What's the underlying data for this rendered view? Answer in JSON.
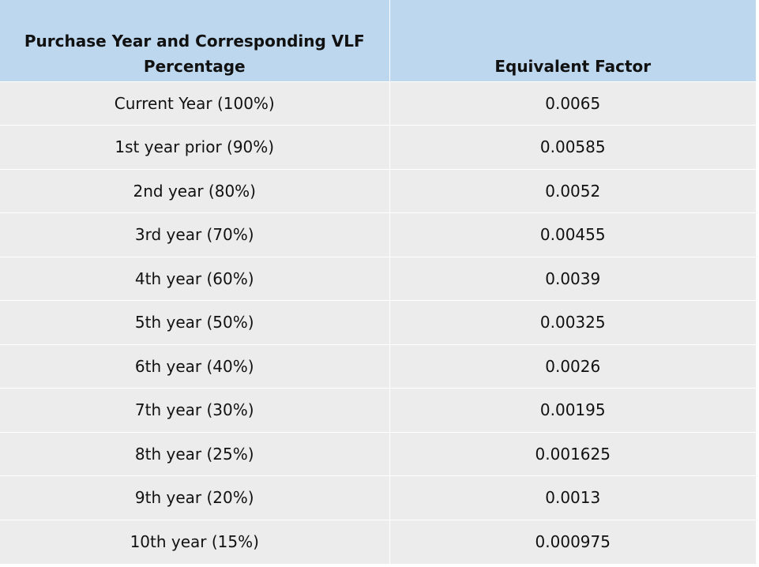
{
  "table": {
    "headers": [
      "Purchase Year and Corresponding VLF Percentage",
      "Equivalent Factor"
    ],
    "rows": [
      [
        "Current Year (100%)",
        "0.0065"
      ],
      [
        "1st year prior (90%)",
        "0.00585"
      ],
      [
        "2nd year (80%)",
        "0.0052"
      ],
      [
        "3rd year (70%)",
        "0.00455"
      ],
      [
        "4th year (60%)",
        "0.0039"
      ],
      [
        "5th year (50%)",
        "0.00325"
      ],
      [
        "6th year (40%)",
        "0.0026"
      ],
      [
        "7th year (30%)",
        "0.00195"
      ],
      [
        "8th year (25%)",
        "0.001625"
      ],
      [
        "9th year (20%)",
        "0.0013"
      ],
      [
        "10th year (15%)",
        "0.000975"
      ]
    ]
  },
  "colors": {
    "header_bg": "#bdd7ee",
    "row_bg": "#ececec",
    "grid": "#ffffff"
  }
}
